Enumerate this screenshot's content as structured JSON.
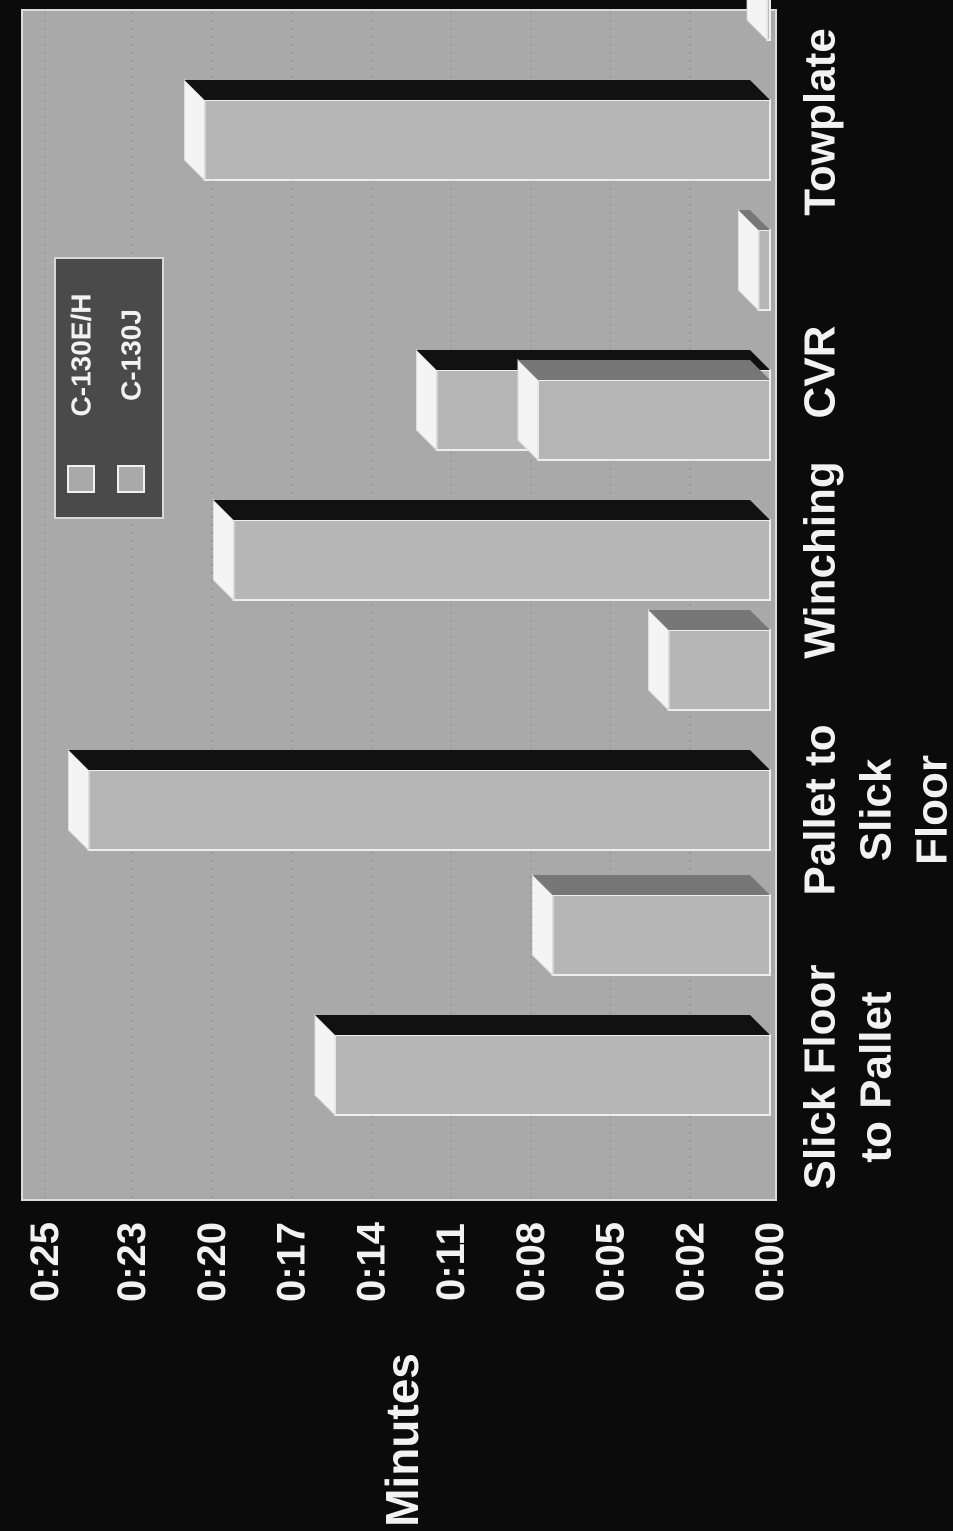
{
  "chart_data": {
    "type": "bar",
    "ylabel": "Minutes",
    "y_ticks": [
      "0:00",
      "0:02",
      "0:05",
      "0:08",
      "0:11",
      "0:14",
      "0:17",
      "0:20",
      "0:23",
      "0:25"
    ],
    "ylim_minutes": [
      0,
      25
    ],
    "categories": [
      [
        "Slick Floor",
        "to Pallet"
      ],
      [
        "Pallet to",
        "Slick",
        "Floor"
      ],
      [
        "Winching"
      ],
      [
        "CVR"
      ],
      [
        "Towplate"
      ]
    ],
    "series": [
      {
        "name": "C-130E/H",
        "values_minutes": [
          15.0,
          23.5,
          18.5,
          11.5,
          19.5
        ]
      },
      {
        "name": "C-130J",
        "values_minutes": [
          7.5,
          3.5,
          8.0,
          0.4,
          0.1
        ]
      }
    ],
    "legend_position": "upper-right",
    "grid": true,
    "orientation": "rotated-90-clockwise",
    "colors": {
      "background": "#0b0b0b",
      "plot_area": "#a9a9a9",
      "bar_front": "#b6b6b6",
      "bar_top": "#f4f4f4",
      "bar_side_dark": "#111111",
      "bar_side_light": "#777777",
      "text": "#f2f2f2",
      "grid": "#8a8a8a"
    }
  }
}
